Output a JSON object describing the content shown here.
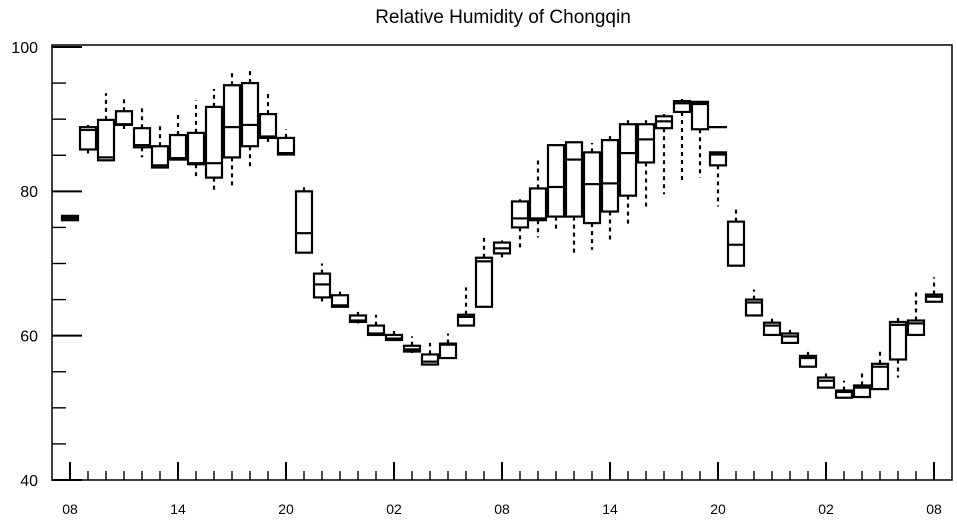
{
  "chart_data": {
    "type": "box",
    "title": "Relative Humidity of Chongqin",
    "ylim": [
      40,
      100
    ],
    "yticks": [
      40,
      60,
      80,
      100
    ],
    "xtick_labels": [
      "08",
      "14",
      "20",
      "02",
      "08",
      "14",
      "20",
      "02",
      "08"
    ],
    "grid": false,
    "boxes": [
      {
        "hour": 8,
        "lo": 76.0,
        "q1": 76.0,
        "med": 76.3,
        "q3": 76.6,
        "hi": 76.6
      },
      {
        "hour": 9,
        "lo": 85.0,
        "q1": 85.8,
        "med": 88.5,
        "q3": 88.9,
        "hi": 89.2
      },
      {
        "hour": 10,
        "lo": 84.3,
        "q1": 84.3,
        "med": 84.7,
        "q3": 89.9,
        "hi": 93.6
      },
      {
        "hour": 11,
        "lo": 88.2,
        "q1": 89.2,
        "med": 89.3,
        "q3": 91.1,
        "hi": 92.8
      },
      {
        "hour": 12,
        "lo": 84.7,
        "q1": 86.1,
        "med": 86.4,
        "q3": 88.75,
        "hi": 91.5
      },
      {
        "hour": 13,
        "lo": 83.3,
        "q1": 83.3,
        "med": 83.6,
        "q3": 86.25,
        "hi": 89.4
      },
      {
        "hour": 14,
        "lo": 84.4,
        "q1": 84.4,
        "med": 84.6,
        "q3": 87.8,
        "hi": 91.0
      },
      {
        "hour": 15,
        "lo": 82.1,
        "q1": 83.75,
        "med": 83.9,
        "q3": 88.1,
        "hi": 92.6
      },
      {
        "hour": 16,
        "lo": 80.1,
        "q1": 81.9,
        "med": 83.9,
        "q3": 91.7,
        "hi": 94.2
      },
      {
        "hour": 17,
        "lo": 80.7,
        "q1": 84.7,
        "med": 88.9,
        "q3": 94.7,
        "hi": 96.7
      },
      {
        "hour": 18,
        "lo": 83.1,
        "q1": 86.25,
        "med": 89.2,
        "q3": 95.0,
        "hi": 97.1
      },
      {
        "hour": 19,
        "lo": 86.4,
        "q1": 87.4,
        "med": 87.6,
        "q3": 90.7,
        "hi": 93.5
      },
      {
        "hour": 20,
        "lo": 85.1,
        "q1": 85.1,
        "med": 85.3,
        "q3": 87.4,
        "hi": 88.6
      },
      {
        "hour": 21,
        "lo": 71.5,
        "q1": 71.5,
        "med": 74.2,
        "q3": 80.0,
        "hi": 80.8
      },
      {
        "hour": 22,
        "lo": 64.3,
        "q1": 65.3,
        "med": 67.1,
        "q3": 68.6,
        "hi": 70.0
      },
      {
        "hour": 23,
        "lo": 64.0,
        "q1": 64.0,
        "med": 64.2,
        "q3": 65.6,
        "hi": 66.1
      },
      {
        "hour": 0,
        "lo": 61.7,
        "q1": 61.9,
        "med": 62.1,
        "q3": 62.8,
        "hi": 63.3
      },
      {
        "hour": 1,
        "lo": 60.1,
        "q1": 60.1,
        "med": 60.3,
        "q3": 61.4,
        "hi": 62.9
      },
      {
        "hour": 2,
        "lo": 59.3,
        "q1": 59.4,
        "med": 59.6,
        "q3": 60.1,
        "hi": 61.1
      },
      {
        "hour": 3,
        "lo": 57.6,
        "q1": 57.8,
        "med": 58.1,
        "q3": 58.6,
        "hi": 59.9
      },
      {
        "hour": 4,
        "lo": 56.0,
        "q1": 56.0,
        "med": 56.4,
        "q3": 57.4,
        "hi": 59.0
      },
      {
        "hour": 5,
        "lo": 56.9,
        "q1": 56.9,
        "med": 58.75,
        "q3": 58.9,
        "hi": 60.3
      },
      {
        "hour": 6,
        "lo": 61.4,
        "q1": 61.4,
        "med": 62.6,
        "q3": 62.9,
        "hi": 66.7
      },
      {
        "hour": 7,
        "lo": 64.0,
        "q1": 64.0,
        "med": 70.3,
        "q3": 70.8,
        "hi": 73.75
      },
      {
        "hour": 8,
        "lo": 70.3,
        "q1": 71.4,
        "med": 72.1,
        "q3": 72.9,
        "hi": 73.2
      },
      {
        "hour": 9,
        "lo": 72.2,
        "q1": 75.0,
        "med": 76.25,
        "q3": 78.6,
        "hi": 78.9
      },
      {
        "hour": 10,
        "lo": 73.6,
        "q1": 76.0,
        "med": 76.25,
        "q3": 80.4,
        "hi": 84.3
      },
      {
        "hour": 11,
        "lo": 74.6,
        "q1": 76.5,
        "med": 80.6,
        "q3": 86.4,
        "hi": 86.5
      },
      {
        "hour": 12,
        "lo": 71.5,
        "q1": 76.5,
        "med": 84.4,
        "q3": 86.8,
        "hi": 86.9
      },
      {
        "hour": 13,
        "lo": 71.9,
        "q1": 75.6,
        "med": 81.0,
        "q3": 85.4,
        "hi": 86.7
      },
      {
        "hour": 14,
        "lo": 73.2,
        "q1": 77.2,
        "med": 81.1,
        "q3": 87.1,
        "hi": 88.2
      },
      {
        "hour": 15,
        "lo": 75.3,
        "q1": 79.4,
        "med": 85.3,
        "q3": 89.3,
        "hi": 90.0
      },
      {
        "hour": 16,
        "lo": 77.8,
        "q1": 84.0,
        "med": 87.2,
        "q3": 89.3,
        "hi": 90.4
      },
      {
        "hour": 17,
        "lo": 79.6,
        "q1": 88.75,
        "med": 89.7,
        "q3": 90.4,
        "hi": 90.7
      },
      {
        "hour": 18,
        "lo": 81.5,
        "q1": 91.0,
        "med": 92.2,
        "q3": 92.5,
        "hi": 92.8
      },
      {
        "hour": 19,
        "lo": 81.9,
        "q1": 88.6,
        "med": 92.1,
        "q3": 92.4,
        "hi": 92.5
      },
      {
        "hour": 20,
        "lo": 77.9,
        "q1": 83.6,
        "med": 85.1,
        "q3": 85.4,
        "hi": 85.4,
        "cap": 88.9
      },
      {
        "hour": 21,
        "lo": 69.7,
        "q1": 69.7,
        "med": 72.6,
        "q3": 75.8,
        "hi": 77.9
      },
      {
        "hour": 22,
        "lo": 62.8,
        "q1": 62.8,
        "med": 64.6,
        "q3": 65.0,
        "hi": 66.4
      },
      {
        "hour": 23,
        "lo": 60.1,
        "q1": 60.1,
        "med": 61.4,
        "q3": 61.8,
        "hi": 62.9
      },
      {
        "hour": 0,
        "lo": 59.0,
        "q1": 59.0,
        "med": 59.9,
        "q3": 60.3,
        "hi": 60.8
      },
      {
        "hour": 1,
        "lo": 55.7,
        "q1": 55.7,
        "med": 56.9,
        "q3": 57.2,
        "hi": 58.3
      },
      {
        "hour": 2,
        "lo": 52.8,
        "q1": 52.8,
        "med": 53.75,
        "q3": 54.2,
        "hi": 54.9
      },
      {
        "hour": 3,
        "lo": 51.4,
        "q1": 51.4,
        "med": 52.2,
        "q3": 52.4,
        "hi": 53.75
      },
      {
        "hour": 4,
        "lo": 51.5,
        "q1": 51.5,
        "med": 52.8,
        "q3": 53.1,
        "hi": 54.9
      },
      {
        "hour": 5,
        "lo": 52.6,
        "q1": 52.6,
        "med": 55.7,
        "q3": 56.1,
        "hi": 57.9
      },
      {
        "hour": 6,
        "lo": 54.2,
        "q1": 56.7,
        "med": 61.5,
        "q3": 61.9,
        "hi": 62.6
      },
      {
        "hour": 7,
        "lo": 60.1,
        "q1": 60.1,
        "med": 61.7,
        "q3": 62.1,
        "hi": 66.25
      },
      {
        "hour": 8,
        "lo": 64.7,
        "q1": 64.7,
        "med": 65.4,
        "q3": 65.7,
        "hi": 68.1
      }
    ]
  }
}
